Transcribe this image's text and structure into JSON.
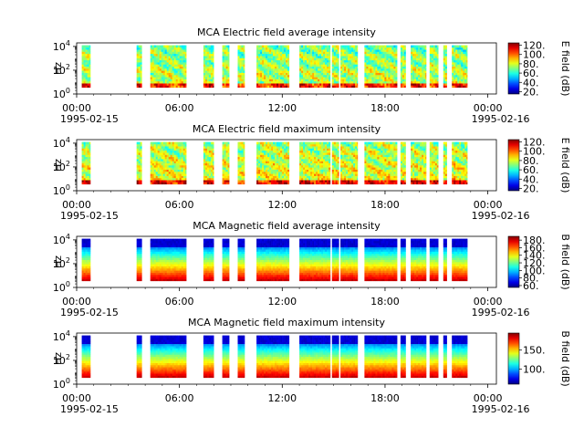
{
  "chart_data": [
    {
      "type": "heatmap",
      "title": "MCA  Electric field average intensity",
      "ylabel": "Hz",
      "y_ticks": [
        {
          "base": "10",
          "exp": "0"
        },
        {
          "base": "10",
          "exp": "2"
        },
        {
          "base": "10",
          "exp": "4"
        }
      ],
      "x_ticks": [
        "00:00",
        "06:00",
        "12:00",
        "18:00",
        "00:00"
      ],
      "x_dates": [
        "1995-02-15",
        "1995-02-16"
      ],
      "xlim": [
        "1995-02-15 00:00",
        "1995-02-16 00:30"
      ],
      "ylim_log10": [
        0,
        4.3
      ],
      "colorbar_label": "E field (dB)",
      "colorbar_ticks": [
        "20.",
        "40.",
        "60.",
        "80.",
        "100.",
        "120."
      ],
      "colorbar_range": [
        15,
        125
      ],
      "style": "electric",
      "data_segments_hours": [
        [
          0.3,
          0.8
        ],
        [
          3.5,
          3.8
        ],
        [
          4.3,
          6.4
        ],
        [
          7.4,
          8.0
        ],
        [
          8.5,
          8.9
        ],
        [
          9.4,
          9.8
        ],
        [
          10.5,
          12.4
        ],
        [
          13.0,
          14.8
        ],
        [
          14.9,
          15.3
        ],
        [
          15.4,
          16.4
        ],
        [
          16.8,
          18.7
        ],
        [
          18.9,
          19.2
        ],
        [
          19.5,
          20.4
        ],
        [
          20.6,
          21.1
        ],
        [
          21.4,
          21.6
        ],
        [
          21.9,
          22.8
        ]
      ],
      "intensity_range_db": [
        20,
        120
      ]
    },
    {
      "type": "heatmap",
      "title": "MCA  Electric field maximum intensity",
      "ylabel": "Hz",
      "y_ticks": [
        {
          "base": "10",
          "exp": "0"
        },
        {
          "base": "10",
          "exp": "2"
        },
        {
          "base": "10",
          "exp": "4"
        }
      ],
      "x_ticks": [
        "00:00",
        "06:00",
        "12:00",
        "18:00",
        "00:00"
      ],
      "x_dates": [
        "1995-02-15",
        "1995-02-16"
      ],
      "xlim": [
        "1995-02-15 00:00",
        "1995-02-16 00:30"
      ],
      "ylim_log10": [
        0,
        4.3
      ],
      "colorbar_label": "E field (dB)",
      "colorbar_ticks": [
        "20.",
        "40.",
        "60.",
        "80.",
        "100.",
        "120."
      ],
      "colorbar_range": [
        15,
        125
      ],
      "style": "electric",
      "data_segments_hours": [
        [
          0.3,
          0.8
        ],
        [
          3.5,
          3.8
        ],
        [
          4.3,
          6.4
        ],
        [
          7.4,
          8.0
        ],
        [
          8.5,
          8.9
        ],
        [
          9.4,
          9.8
        ],
        [
          10.5,
          12.4
        ],
        [
          13.0,
          14.8
        ],
        [
          14.9,
          15.3
        ],
        [
          15.4,
          16.4
        ],
        [
          16.8,
          18.7
        ],
        [
          18.9,
          19.2
        ],
        [
          19.5,
          20.4
        ],
        [
          20.6,
          21.1
        ],
        [
          21.4,
          21.6
        ],
        [
          21.9,
          22.8
        ]
      ],
      "intensity_range_db": [
        20,
        120
      ]
    },
    {
      "type": "heatmap",
      "title": "MCA  Magnetic field average intensity",
      "ylabel": "Hz",
      "y_ticks": [
        {
          "base": "10",
          "exp": "0"
        },
        {
          "base": "10",
          "exp": "2"
        },
        {
          "base": "10",
          "exp": "4"
        }
      ],
      "x_ticks": [
        "00:00",
        "06:00",
        "12:00",
        "18:00",
        "00:00"
      ],
      "x_dates": [
        "1995-02-15",
        "1995-02-16"
      ],
      "xlim": [
        "1995-02-15 00:00",
        "1995-02-16 00:30"
      ],
      "ylim_log10": [
        0,
        4.3
      ],
      "colorbar_label": "B field (dB)",
      "colorbar_ticks": [
        "60.",
        "80.",
        "100.",
        "120.",
        "140.",
        "160.",
        "180."
      ],
      "colorbar_range": [
        55,
        190
      ],
      "style": "magnetic",
      "data_segments_hours": [
        [
          0.3,
          0.8
        ],
        [
          3.5,
          3.8
        ],
        [
          4.3,
          6.4
        ],
        [
          7.4,
          8.0
        ],
        [
          8.5,
          8.9
        ],
        [
          9.4,
          9.8
        ],
        [
          10.5,
          12.4
        ],
        [
          13.0,
          14.8
        ],
        [
          14.9,
          15.3
        ],
        [
          15.4,
          16.4
        ],
        [
          16.8,
          18.7
        ],
        [
          18.9,
          19.2
        ],
        [
          19.5,
          20.4
        ],
        [
          20.6,
          21.1
        ],
        [
          21.4,
          21.6
        ],
        [
          21.9,
          22.8
        ]
      ],
      "intensity_range_db": [
        60,
        180
      ]
    },
    {
      "type": "heatmap",
      "title": "MCA  Magnetic field maximum intensity",
      "ylabel": "Hz",
      "y_ticks": [
        {
          "base": "10",
          "exp": "0"
        },
        {
          "base": "10",
          "exp": "2"
        },
        {
          "base": "10",
          "exp": "4"
        }
      ],
      "x_ticks": [
        "00:00",
        "06:00",
        "12:00",
        "18:00",
        "00:00"
      ],
      "x_dates": [
        "1995-02-15",
        "1995-02-16"
      ],
      "xlim": [
        "1995-02-15 00:00",
        "1995-02-16 00:30"
      ],
      "ylim_log10": [
        0,
        4.3
      ],
      "colorbar_label": "B field (dB)",
      "colorbar_ticks": [
        "100.",
        "150."
      ],
      "colorbar_range": [
        60,
        195
      ],
      "style": "magnetic",
      "data_segments_hours": [
        [
          0.3,
          0.8
        ],
        [
          3.5,
          3.8
        ],
        [
          4.3,
          6.4
        ],
        [
          7.4,
          8.0
        ],
        [
          8.5,
          8.9
        ],
        [
          9.4,
          9.8
        ],
        [
          10.5,
          12.4
        ],
        [
          13.0,
          14.8
        ],
        [
          14.9,
          15.3
        ],
        [
          15.4,
          16.4
        ],
        [
          16.8,
          18.7
        ],
        [
          18.9,
          19.2
        ],
        [
          19.5,
          20.4
        ],
        [
          20.6,
          21.1
        ],
        [
          21.4,
          21.6
        ],
        [
          21.9,
          22.8
        ]
      ],
      "intensity_range_db": [
        60,
        190
      ]
    }
  ]
}
